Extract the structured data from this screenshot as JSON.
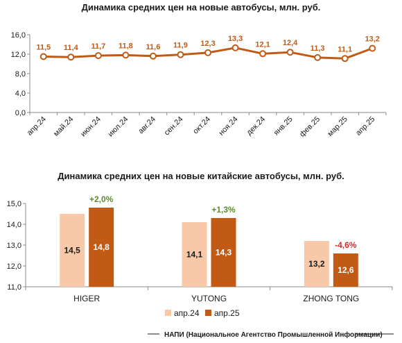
{
  "chart_data": [
    {
      "type": "line",
      "title": "Динамика средних цен на новые автобусы, млн. руб.",
      "categories": [
        "апр.24",
        "май.24",
        "июн.24",
        "июл.24",
        "авг.24",
        "сен.24",
        "окт.24",
        "ноя.24",
        "дек.24",
        "янв.25",
        "фев.25",
        "мар.25",
        "апр.25"
      ],
      "values": [
        11.5,
        11.4,
        11.7,
        11.8,
        11.6,
        11.9,
        12.3,
        13.3,
        12.1,
        12.4,
        11.3,
        11.1,
        13.2
      ],
      "value_labels": [
        "11,5",
        "11,4",
        "11,7",
        "11,8",
        "11,6",
        "11,9",
        "12,3",
        "13,3",
        "12,1",
        "12,4",
        "11,3",
        "11,1",
        "13,2"
      ],
      "y_ticks": [
        "0,0",
        "4,0",
        "8,0",
        "12,0",
        "16,0"
      ],
      "ylim": [
        0,
        16
      ],
      "grid": false,
      "color": "#c05a14"
    },
    {
      "type": "bar",
      "title": "Динамика средних цен на новые китайские автобусы, млн. руб.",
      "categories": [
        "HIGER",
        "YUTONG",
        "ZHONG TONG"
      ],
      "series": [
        {
          "name": "апр.24",
          "values": [
            14.5,
            14.1,
            13.2
          ],
          "labels": [
            "14,5",
            "14,1",
            "13,2"
          ],
          "color": "#f7c9a8"
        },
        {
          "name": "апр.25",
          "values": [
            14.8,
            14.3,
            12.6
          ],
          "labels": [
            "14,8",
            "14,3",
            "12,6"
          ],
          "color": "#c05a14"
        }
      ],
      "changes": [
        {
          "text": "+2,0%",
          "color": "#5b8a2e"
        },
        {
          "text": "+1,3%",
          "color": "#5b8a2e"
        },
        {
          "text": "-4,6%",
          "color": "#d22b2b"
        }
      ],
      "y_ticks": [
        "11,0",
        "12,0",
        "13,0",
        "14,0",
        "15,0"
      ],
      "ylim": [
        11,
        15
      ],
      "grid": false,
      "legend": "bottom-center"
    }
  ],
  "footer": {
    "source": "НАПИ (Национальное Агентство Промышленной Информации)"
  }
}
